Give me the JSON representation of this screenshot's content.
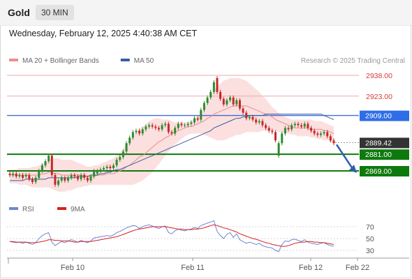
{
  "header": {
    "symbol": "Gold",
    "timeframe": "30 MIN"
  },
  "datetime": "Wednesday, February 12, 2025 4:40:38 AM CET",
  "legend": {
    "main": [
      {
        "name": "MA 20 + Bollinger Bands",
        "color": "#ef8c8c"
      },
      {
        "name": "MA 50",
        "color": "#3a5f9c"
      }
    ],
    "rsi": [
      {
        "name": "RSI",
        "color": "#6b86d6"
      },
      {
        "name": "9MA",
        "color": "#d62020"
      }
    ]
  },
  "credit": "Research © 2025 Trading Central",
  "colors": {
    "up": "#2e8b2e",
    "down": "#c62828",
    "support": "#0e7a0e",
    "resistance": "#f0a8a8",
    "pivot": "#3a6fd8",
    "band": "#fbd9d9",
    "arrow": "#2f5fa8"
  },
  "chart_data": [
    {
      "type": "candlestick",
      "title": "Gold",
      "ylim": [
        2848,
        2948
      ],
      "x_ticks": [
        "Feb 10",
        "Feb 11",
        "Feb 12",
        "Feb 22"
      ],
      "current_price": "2889.42",
      "levels": [
        {
          "value": 2938.0,
          "label": "2938.00",
          "kind": "resistance"
        },
        {
          "value": 2923.0,
          "label": "2923.00",
          "kind": "resistance"
        },
        {
          "value": 2909.0,
          "label": "2909.00",
          "kind": "pivot"
        },
        {
          "value": 2881.0,
          "label": "2881.00",
          "kind": "support"
        },
        {
          "value": 2869.0,
          "label": "2869.00",
          "kind": "support"
        }
      ],
      "forecast_arrow": {
        "from": 2888,
        "to": 2868
      },
      "series": [
        {
          "name": "candles",
          "close": [
            2866,
            2867,
            2865,
            2866,
            2864,
            2866,
            2863,
            2861,
            2864,
            2869,
            2873,
            2876,
            2880,
            2866,
            2859,
            2862,
            2864,
            2862,
            2864,
            2866,
            2865,
            2863,
            2866,
            2864,
            2862,
            2865,
            2869,
            2869,
            2870,
            2871,
            2872,
            2871,
            2873,
            2877,
            2879,
            2883,
            2889,
            2893,
            2897,
            2898,
            2896,
            2899,
            2901,
            2902,
            2901,
            2900,
            2899,
            2902,
            2903,
            2897,
            2896,
            2900,
            2903,
            2902,
            2902,
            2903,
            2904,
            2907,
            2906,
            2913,
            2918,
            2922,
            2926,
            2933,
            2926,
            2921,
            2917,
            2920,
            2922,
            2917,
            2920,
            2914,
            2911,
            2907,
            2908,
            2906,
            2904,
            2905,
            2902,
            2900,
            2898,
            2897,
            2891,
            2889,
            2896,
            2900,
            2899,
            2902,
            2903,
            2902,
            2901,
            2903,
            2900,
            2898,
            2896,
            2895,
            2896,
            2897,
            2894,
            2891,
            2889
          ],
          "open": [
            2867,
            2866,
            2867,
            2865,
            2866,
            2865,
            2866,
            2863,
            2861,
            2864,
            2869,
            2873,
            2876,
            2880,
            2866,
            2859,
            2862,
            2864,
            2862,
            2864,
            2866,
            2865,
            2863,
            2866,
            2864,
            2862,
            2865,
            2867,
            2869,
            2870,
            2871,
            2872,
            2871,
            2873,
            2877,
            2879,
            2883,
            2889,
            2893,
            2897,
            2898,
            2896,
            2899,
            2901,
            2902,
            2901,
            2900,
            2899,
            2902,
            2903,
            2897,
            2896,
            2900,
            2903,
            2902,
            2902,
            2903,
            2904,
            2907,
            2906,
            2913,
            2918,
            2922,
            2926,
            2936,
            2926,
            2921,
            2917,
            2920,
            2922,
            2917,
            2920,
            2914,
            2911,
            2907,
            2908,
            2906,
            2904,
            2905,
            2902,
            2900,
            2898,
            2897,
            2880,
            2889,
            2896,
            2900,
            2899,
            2902,
            2903,
            2902,
            2901,
            2903,
            2900,
            2898,
            2896,
            2895,
            2896,
            2897,
            2894,
            2891
          ]
        },
        {
          "name": "MA 20",
          "values": [
            2866,
            2866,
            2866,
            2866,
            2866,
            2866,
            2866,
            2866,
            2866,
            2866,
            2867,
            2867,
            2868,
            2868,
            2867,
            2867,
            2866,
            2866,
            2866,
            2866,
            2866,
            2866,
            2866,
            2866,
            2865,
            2865,
            2865,
            2866,
            2866,
            2866,
            2867,
            2867,
            2867,
            2868,
            2869,
            2870,
            2872,
            2873,
            2875,
            2877,
            2879,
            2880,
            2882,
            2884,
            2886,
            2888,
            2890,
            2891,
            2893,
            2894,
            2896,
            2897,
            2898,
            2899,
            2900,
            2901,
            2901,
            2902,
            2903,
            2904,
            2905,
            2907,
            2908,
            2910,
            2911,
            2912,
            2913,
            2914,
            2915,
            2916,
            2916,
            2916,
            2916,
            2916,
            2915,
            2914,
            2913,
            2912,
            2911,
            2910,
            2909,
            2908,
            2906,
            2905,
            2904,
            2903,
            2902,
            2901,
            2900,
            2900,
            2900,
            2900,
            2900,
            2899,
            2899,
            2899,
            2899,
            2898,
            2898,
            2897,
            2896
          ]
        },
        {
          "name": "MA 50",
          "values": [
            2862,
            2862,
            2862,
            2862,
            2862,
            2863,
            2863,
            2863,
            2863,
            2863,
            2863,
            2863,
            2864,
            2864,
            2864,
            2864,
            2864,
            2864,
            2864,
            2864,
            2864,
            2865,
            2865,
            2865,
            2865,
            2866,
            2866,
            2866,
            2867,
            2867,
            2868,
            2868,
            2869,
            2870,
            2870,
            2871,
            2872,
            2873,
            2874,
            2875,
            2876,
            2877,
            2878,
            2879,
            2880,
            2881,
            2882,
            2883,
            2884,
            2885,
            2886,
            2887,
            2888,
            2889,
            2890,
            2891,
            2892,
            2893,
            2894,
            2895,
            2896,
            2897,
            2898,
            2900,
            2901,
            2902,
            2903,
            2904,
            2905,
            2906,
            2907,
            2907,
            2908,
            2908,
            2909,
            2909,
            2909,
            2909,
            2909,
            2910,
            2910,
            2910,
            2910,
            2910,
            2910,
            2910,
            2910,
            2910,
            2910,
            2910,
            2910,
            2910,
            2910,
            2910,
            2910,
            2910,
            2910,
            2909,
            2908,
            2907,
            2906
          ]
        },
        {
          "name": "Bollinger upper",
          "values": [
            2870,
            2870,
            2870,
            2871,
            2871,
            2871,
            2871,
            2872,
            2872,
            2873,
            2874,
            2875,
            2877,
            2878,
            2878,
            2878,
            2877,
            2877,
            2877,
            2877,
            2876,
            2875,
            2874,
            2873,
            2872,
            2872,
            2873,
            2873,
            2874,
            2875,
            2876,
            2877,
            2878,
            2880,
            2882,
            2885,
            2888,
            2891,
            2894,
            2897,
            2899,
            2901,
            2903,
            2905,
            2906,
            2907,
            2907,
            2906,
            2906,
            2906,
            2905,
            2904,
            2904,
            2904,
            2904,
            2904,
            2905,
            2906,
            2908,
            2911,
            2914,
            2918,
            2922,
            2927,
            2930,
            2932,
            2934,
            2935,
            2936,
            2936,
            2936,
            2936,
            2935,
            2934,
            2932,
            2930,
            2928,
            2926,
            2923,
            2921,
            2918,
            2915,
            2913,
            2911,
            2909,
            2908,
            2907,
            2906,
            2906,
            2906,
            2906,
            2906,
            2906,
            2906,
            2905,
            2905,
            2905,
            2904,
            2903,
            2902,
            2901
          ]
        },
        {
          "name": "Bollinger lower",
          "values": [
            2860,
            2860,
            2860,
            2859,
            2859,
            2859,
            2858,
            2857,
            2857,
            2857,
            2857,
            2857,
            2857,
            2856,
            2855,
            2854,
            2854,
            2854,
            2855,
            2855,
            2856,
            2857,
            2857,
            2858,
            2858,
            2859,
            2859,
            2859,
            2859,
            2859,
            2859,
            2859,
            2859,
            2859,
            2859,
            2859,
            2859,
            2859,
            2859,
            2860,
            2861,
            2862,
            2864,
            2866,
            2868,
            2871,
            2874,
            2877,
            2880,
            2883,
            2886,
            2888,
            2890,
            2892,
            2894,
            2895,
            2896,
            2896,
            2896,
            2896,
            2895,
            2894,
            2893,
            2892,
            2891,
            2891,
            2891,
            2892,
            2893,
            2894,
            2895,
            2895,
            2896,
            2897,
            2897,
            2897,
            2897,
            2897,
            2898,
            2898,
            2898,
            2898,
            2898,
            2897,
            2897,
            2896,
            2896,
            2895,
            2895,
            2894,
            2894,
            2894,
            2894,
            2893,
            2893,
            2892,
            2892,
            2891,
            2891,
            2890,
            2889
          ]
        }
      ]
    },
    {
      "type": "line",
      "title": "RSI",
      "ylim": [
        22,
        82
      ],
      "y_ticks": [
        70,
        50,
        30
      ],
      "series": [
        {
          "name": "RSI",
          "values": [
            45,
            44,
            43,
            44,
            42,
            44,
            42,
            40,
            43,
            50,
            55,
            58,
            60,
            44,
            38,
            42,
            45,
            43,
            46,
            48,
            46,
            44,
            47,
            45,
            43,
            46,
            51,
            52,
            53,
            54,
            55,
            54,
            56,
            60,
            62,
            65,
            68,
            70,
            72,
            71,
            67,
            70,
            72,
            73,
            71,
            69,
            67,
            70,
            71,
            60,
            58,
            63,
            66,
            64,
            63,
            65,
            66,
            69,
            67,
            72,
            74,
            76,
            78,
            80,
            62,
            55,
            50,
            57,
            60,
            52,
            58,
            48,
            45,
            42,
            44,
            42,
            40,
            42,
            38,
            36,
            35,
            34,
            30,
            28,
            40,
            46,
            45,
            48,
            49,
            47,
            45,
            48,
            44,
            42,
            41,
            40,
            42,
            43,
            40,
            38,
            37
          ]
        },
        {
          "name": "9MA",
          "values": [
            45,
            45,
            44,
            44,
            44,
            44,
            43,
            43,
            43,
            44,
            45,
            46,
            48,
            48,
            47,
            47,
            46,
            46,
            46,
            45,
            44,
            44,
            45,
            45,
            45,
            45,
            46,
            47,
            48,
            49,
            50,
            51,
            52,
            53,
            55,
            57,
            59,
            61,
            63,
            65,
            66,
            67,
            68,
            69,
            70,
            70,
            70,
            70,
            70,
            69,
            68,
            67,
            66,
            66,
            65,
            65,
            65,
            66,
            66,
            67,
            68,
            70,
            72,
            73,
            72,
            70,
            68,
            67,
            65,
            63,
            61,
            58,
            56,
            54,
            52,
            50,
            49,
            47,
            45,
            43,
            42,
            40,
            39,
            38,
            37,
            37,
            38,
            40,
            42,
            43,
            44,
            44,
            45,
            45,
            44,
            44,
            43,
            43,
            42,
            41,
            40
          ]
        }
      ]
    }
  ]
}
